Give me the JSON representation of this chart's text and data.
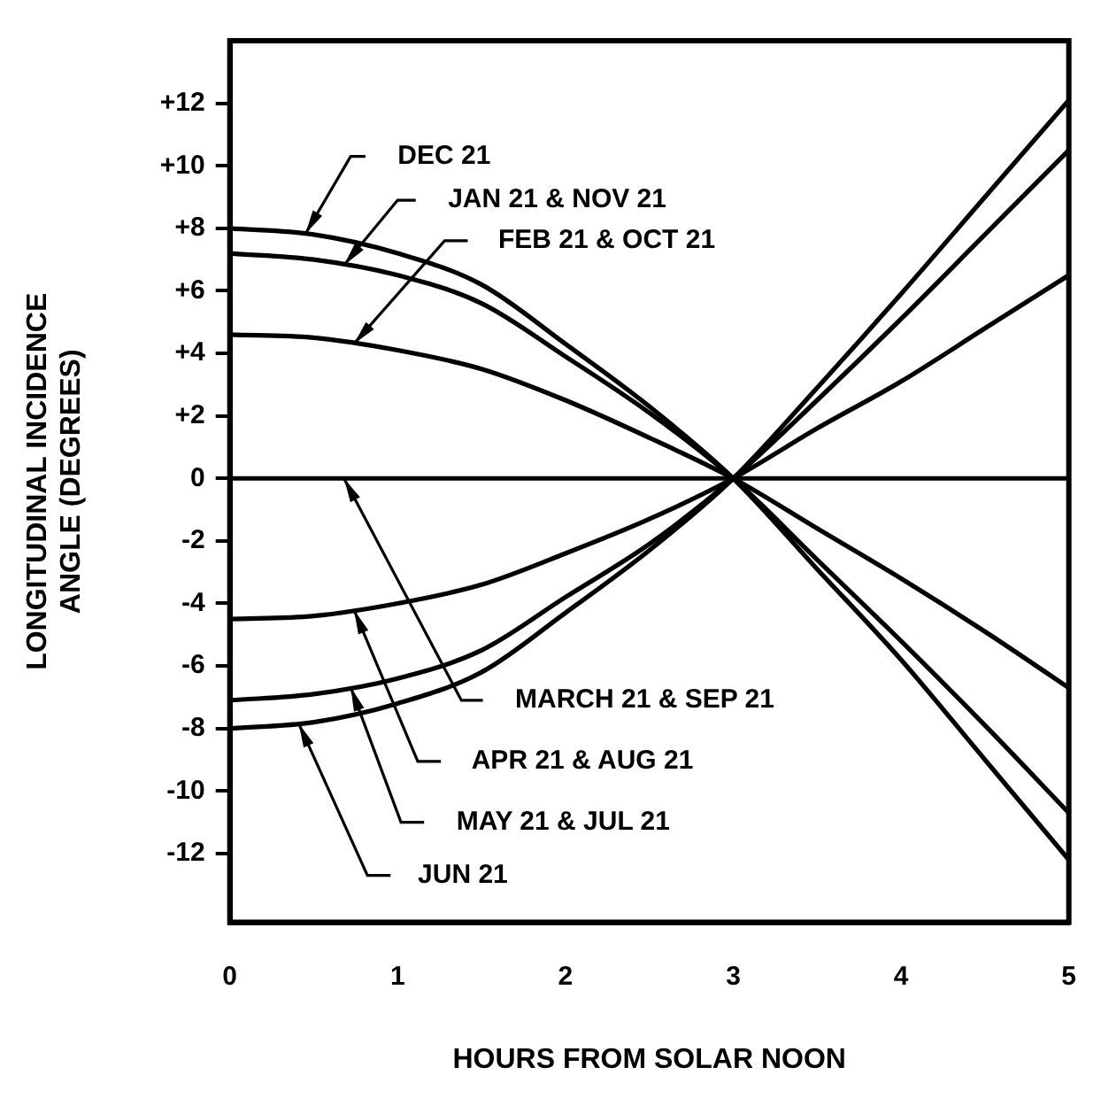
{
  "chart_data": {
    "type": "line",
    "xlabel": "HOURS FROM SOLAR NOON",
    "ylabel": "LONGITUDINAL INCIDENCE ANGLE (DEGREES)",
    "x": [
      0,
      0.5,
      1,
      1.5,
      2,
      2.5,
      3,
      3.5,
      4,
      4.5,
      5
    ],
    "xlim": [
      0,
      5
    ],
    "xticks": [
      0,
      1,
      2,
      3,
      4,
      5
    ],
    "ylim": [
      -14.2,
      14
    ],
    "yticks": [
      {
        "value": 12,
        "label": "+12"
      },
      {
        "value": 10,
        "label": "+10"
      },
      {
        "value": 8,
        "label": "+8"
      },
      {
        "value": 6,
        "label": "+6"
      },
      {
        "value": 4,
        "label": "+4"
      },
      {
        "value": 2,
        "label": "+2"
      },
      0,
      -2,
      -4,
      -6,
      -8,
      -10,
      -12
    ],
    "grid": false,
    "marker": "none",
    "line_style": "solid",
    "legend": false,
    "series": [
      {
        "name": "DEC 21",
        "color": "#000000",
        "values": [
          8,
          7.8,
          7.2,
          6.2,
          4.3,
          2.3,
          0,
          -2.9,
          -5.8,
          -9,
          -12.2
        ]
      },
      {
        "name": "JAN 21 & NOV 21",
        "color": "#000000",
        "values": [
          7.2,
          7,
          6.5,
          5.6,
          3.9,
          2.1,
          0,
          -2.6,
          -5.2,
          -7.9,
          -10.7
        ]
      },
      {
        "name": "FEB 21 & OCT 21",
        "color": "#000000",
        "values": [
          4.6,
          4.5,
          4.1,
          3.5,
          2.5,
          1.3,
          0,
          -1.6,
          -3.2,
          -4.9,
          -6.7
        ]
      },
      {
        "name": "MARCH 21 & SEP 21",
        "color": "#000000",
        "values": [
          0,
          0,
          0,
          0,
          0,
          0,
          0,
          0,
          0,
          0,
          0
        ]
      },
      {
        "name": "APR 21 & AUG 21",
        "color": "#000000",
        "values": [
          -4.5,
          -4.4,
          -4,
          -3.4,
          -2.4,
          -1.3,
          0,
          1.6,
          3.1,
          4.8,
          6.5
        ]
      },
      {
        "name": "MAY 21 & JUL 21",
        "color": "#000000",
        "values": [
          -7.1,
          -6.9,
          -6.4,
          -5.5,
          -3.8,
          -2.1,
          0,
          2.5,
          5.1,
          7.8,
          10.5
        ]
      },
      {
        "name": "JUN 21",
        "color": "#000000",
        "values": [
          -8,
          -7.8,
          -7.2,
          -6.2,
          -4.3,
          -2.3,
          0,
          2.9,
          5.9,
          9,
          12.1
        ]
      }
    ]
  }
}
